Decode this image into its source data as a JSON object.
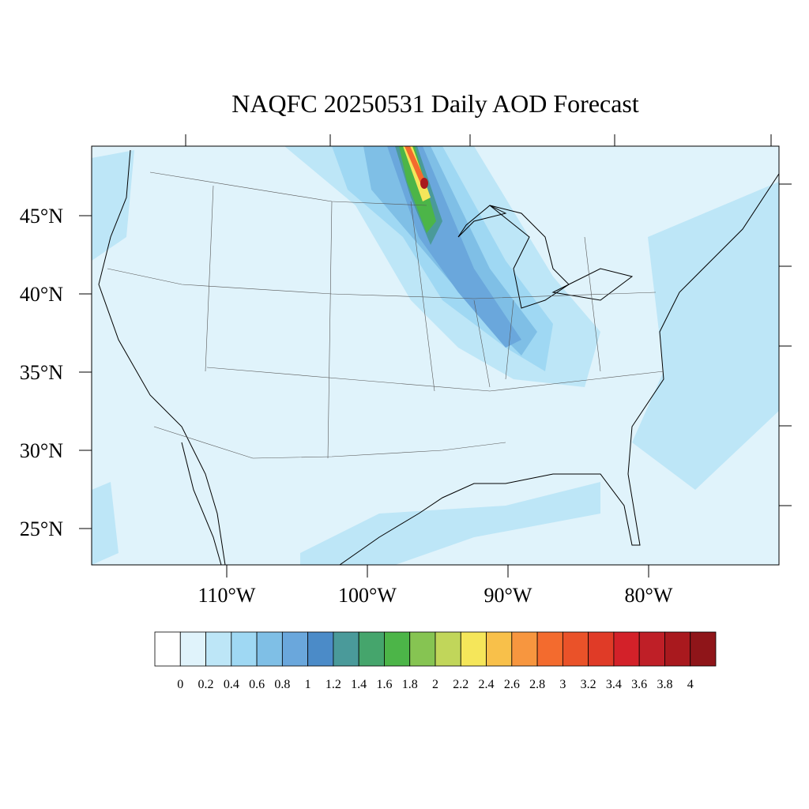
{
  "title": "NAQFC 20250531 Daily AOD Forecast",
  "map": {
    "lat_ticks": [
      {
        "value": 45,
        "label": "45°N"
      },
      {
        "value": 40,
        "label": "40°N"
      },
      {
        "value": 35,
        "label": "35°N"
      },
      {
        "value": 30,
        "label": "30°N"
      },
      {
        "value": 25,
        "label": "25°N"
      }
    ],
    "lon_ticks": [
      {
        "value": -110,
        "label": "110°W"
      },
      {
        "value": -100,
        "label": "100°W"
      },
      {
        "value": -90,
        "label": "90°W"
      },
      {
        "value": -80,
        "label": "80°W"
      }
    ]
  },
  "colorbar": {
    "levels": [
      0,
      0.2,
      0.4,
      0.6,
      0.8,
      1,
      1.2,
      1.4,
      1.6,
      1.8,
      2,
      2.2,
      2.4,
      2.6,
      2.8,
      3,
      3.2,
      3.4,
      3.6,
      3.8,
      4
    ],
    "colors": [
      "#ffffff",
      "#e0f3fb",
      "#bde6f7",
      "#9fd8f3",
      "#7fbfe6",
      "#6aa7dc",
      "#4b8bc8",
      "#4a9a9a",
      "#45a56c",
      "#4cb548",
      "#86c452",
      "#c1d65a",
      "#f5e65a",
      "#f8c04a",
      "#f7963f",
      "#f36b2e",
      "#ea5229",
      "#e03b27",
      "#d32129",
      "#bf1f27",
      "#a9191e",
      "#8f1519"
    ]
  }
}
